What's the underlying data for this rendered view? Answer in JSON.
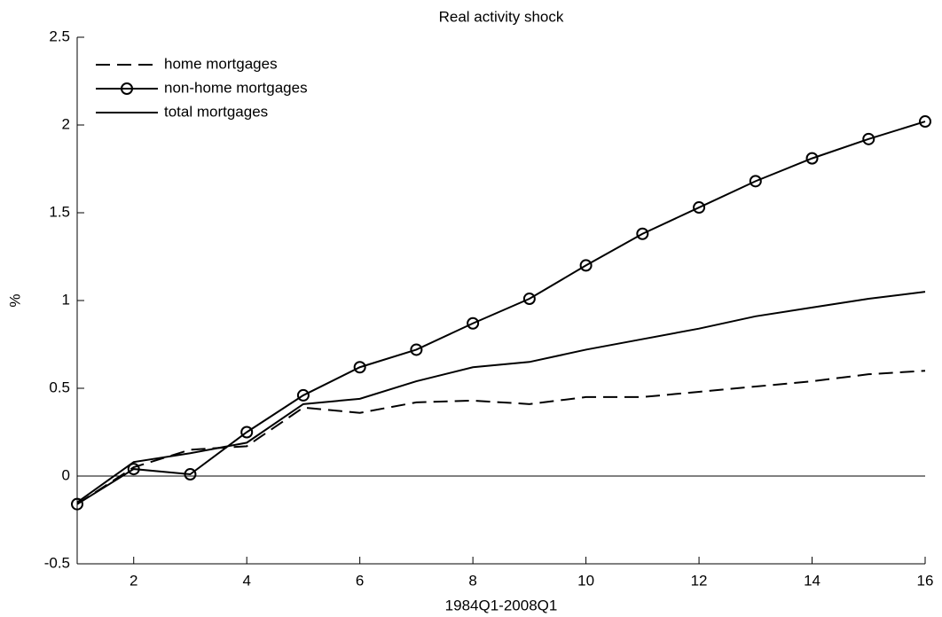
{
  "chart_data": {
    "type": "line",
    "title": "Real activity shock",
    "x_label": "1984Q1-2008Q1",
    "y_label": "%",
    "x": [
      1,
      2,
      3,
      4,
      5,
      6,
      7,
      8,
      9,
      10,
      11,
      12,
      13,
      14,
      15,
      16
    ],
    "series": [
      {
        "name": "home mortgages",
        "color": "#000000",
        "style": "dashed",
        "marker": "none",
        "values": [
          -0.16,
          0.05,
          0.15,
          0.17,
          0.39,
          0.36,
          0.42,
          0.43,
          0.41,
          0.45,
          0.45,
          0.48,
          0.51,
          0.54,
          0.58,
          0.6
        ]
      },
      {
        "name": "non-home mortgages",
        "color": "#000000",
        "style": "solid",
        "marker": "circle",
        "values": [
          -0.16,
          0.04,
          0.01,
          0.25,
          0.46,
          0.62,
          0.72,
          0.87,
          1.01,
          1.2,
          1.38,
          1.53,
          1.68,
          1.81,
          1.92,
          2.02
        ]
      },
      {
        "name": "total mortgages",
        "color": "#000000",
        "style": "solid",
        "marker": "none",
        "values": [
          -0.15,
          0.08,
          0.13,
          0.19,
          0.41,
          0.44,
          0.54,
          0.62,
          0.65,
          0.72,
          0.78,
          0.84,
          0.91,
          0.96,
          1.01,
          1.05
        ]
      }
    ],
    "xlim": [
      1,
      16
    ],
    "xticks": [
      2,
      4,
      6,
      8,
      10,
      12,
      14,
      16
    ],
    "ylim": [
      -0.5,
      2.5
    ],
    "yticks": [
      -0.5,
      0,
      0.5,
      1,
      1.5,
      2,
      2.5
    ],
    "zero_line": true,
    "grid": false,
    "legend": "upper-left"
  }
}
